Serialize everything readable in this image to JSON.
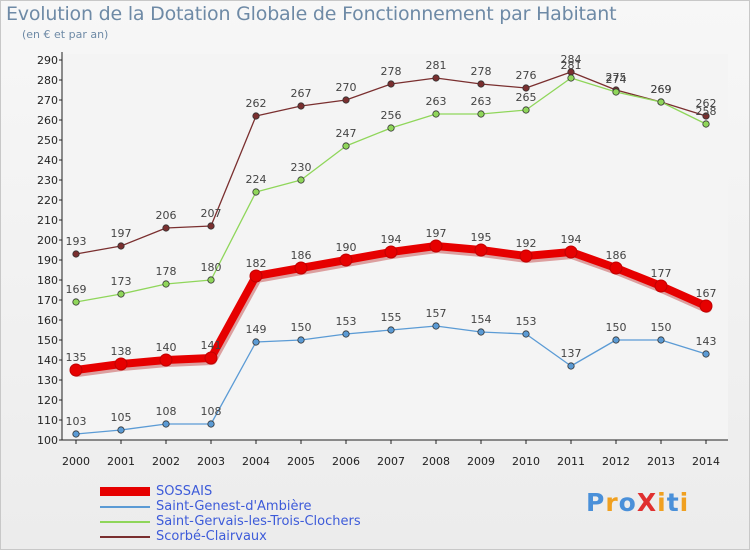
{
  "title": "Evolution de la Dotation Globale de Fonctionnement par Habitant",
  "subtitle": "(en € et par an)",
  "logo": {
    "text": "ProXiti",
    "colors": [
      "#4a90d9",
      "#f0a020",
      "#4a90d9",
      "#e03030",
      "#f0a020",
      "#4a90d9",
      "#f0a020"
    ]
  },
  "chart_data": {
    "type": "line",
    "x": [
      2000,
      2001,
      2002,
      2003,
      2004,
      2005,
      2006,
      2007,
      2008,
      2009,
      2010,
      2011,
      2012,
      2013,
      2014
    ],
    "ylim": [
      100,
      290
    ],
    "yticks": [
      100,
      110,
      120,
      130,
      140,
      150,
      160,
      170,
      180,
      190,
      200,
      210,
      220,
      230,
      240,
      250,
      260,
      270,
      280,
      290
    ],
    "grid": false,
    "legend_position": "bottom-left",
    "series": [
      {
        "name": "SOSSAIS",
        "color": "#e60000",
        "values": [
          135,
          138,
          140,
          141,
          182,
          186,
          190,
          194,
          197,
          195,
          192,
          194,
          186,
          177,
          167
        ]
      },
      {
        "name": "Saint-Genest-d'Ambière",
        "color": "#5b9bd5",
        "values": [
          103,
          105,
          108,
          108,
          149,
          150,
          153,
          155,
          157,
          154,
          153,
          137,
          150,
          150,
          143
        ]
      },
      {
        "name": "Saint-Gervais-les-Trois-Clochers",
        "color": "#8fd65a",
        "values": [
          169,
          173,
          178,
          180,
          224,
          230,
          247,
          256,
          263,
          263,
          265,
          281,
          274,
          269,
          258
        ]
      },
      {
        "name": "Scorbé-Clairvaux",
        "color": "#7a2f2f",
        "values": [
          193,
          197,
          206,
          207,
          262,
          267,
          270,
          278,
          281,
          278,
          276,
          284,
          275,
          269,
          262
        ]
      }
    ]
  }
}
